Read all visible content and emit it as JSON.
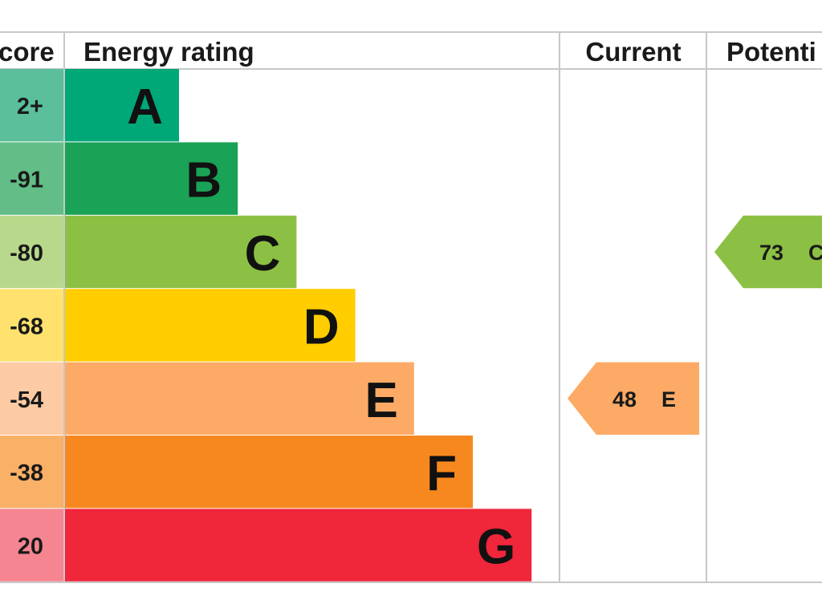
{
  "chart_data": {
    "type": "bar",
    "headers": {
      "score": "core",
      "rating": "Energy rating",
      "current": "Current",
      "potential": "Potenti"
    },
    "bands": [
      {
        "letter": "A",
        "score_label": "2+",
        "color": "#00a878",
        "score_color": "#5bbf9c"
      },
      {
        "letter": "B",
        "score_label": "-91",
        "color": "#1aa256",
        "score_color": "#62bd86"
      },
      {
        "letter": "C",
        "score_label": "-80",
        "color": "#8cc044",
        "score_color": "#b8d98c"
      },
      {
        "letter": "D",
        "score_label": "-68",
        "color": "#ffcd00",
        "score_color": "#ffe26e"
      },
      {
        "letter": "E",
        "score_label": "-54",
        "color": "#fcaa65",
        "score_color": "#fdcba3"
      },
      {
        "letter": "F",
        "score_label": "-38",
        "color": "#f7881f",
        "score_color": "#f9b067"
      },
      {
        "letter": "G",
        "score_label": "20",
        "color": "#f0263b",
        "score_color": "#f58590"
      }
    ],
    "current": {
      "score": "48",
      "band": "E",
      "color": "#fcaa65"
    },
    "potential": {
      "score": "73",
      "band": "C",
      "color": "#8cc044"
    }
  }
}
